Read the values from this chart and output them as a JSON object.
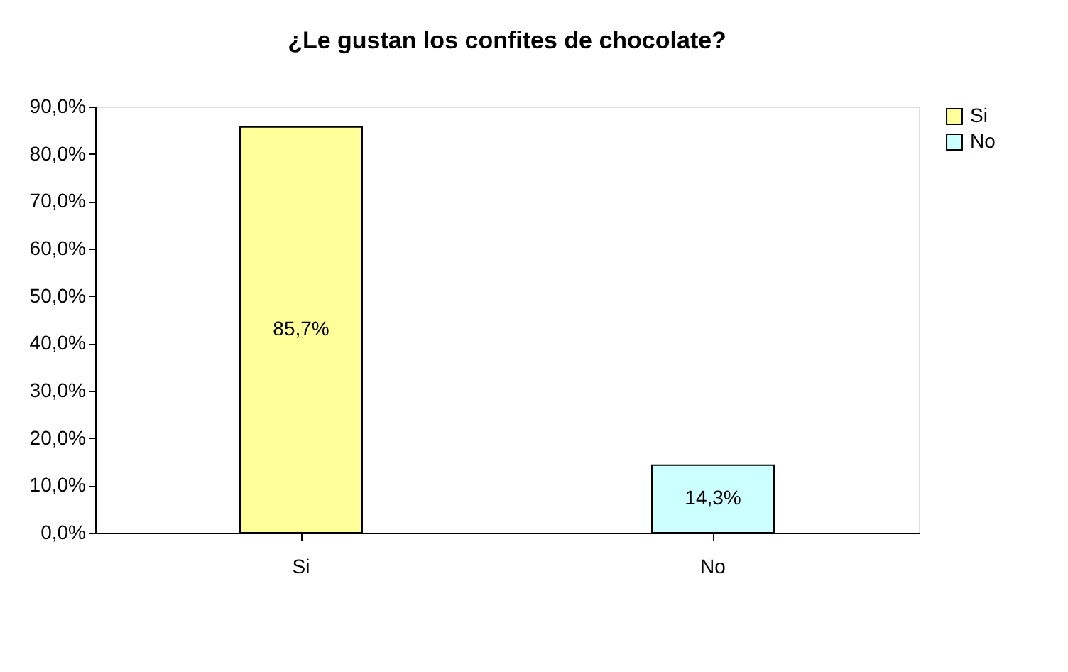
{
  "chart_data": {
    "type": "bar",
    "title": "¿Le gustan los confites de chocolate?",
    "categories": [
      "Si",
      "No"
    ],
    "series": [
      {
        "name": "Si",
        "color": "#ffff99",
        "values": [
          85.7,
          null
        ],
        "value_labels": [
          "85,7%",
          null
        ]
      },
      {
        "name": "No",
        "color": "#ccffff",
        "values": [
          null,
          14.3
        ],
        "value_labels": [
          null,
          "14,3%"
        ]
      }
    ],
    "ylim": [
      0,
      90
    ],
    "yticks": [
      {
        "value": 0,
        "label": "0,0%"
      },
      {
        "value": 10,
        "label": "10,0%"
      },
      {
        "value": 20,
        "label": "20,0%"
      },
      {
        "value": 30,
        "label": "30,0%"
      },
      {
        "value": 40,
        "label": "40,0%"
      },
      {
        "value": 50,
        "label": "50,0%"
      },
      {
        "value": 60,
        "label": "60,0%"
      },
      {
        "value": 70,
        "label": "70,0%"
      },
      {
        "value": 80,
        "label": "80,0%"
      },
      {
        "value": 90,
        "label": "90,0%"
      }
    ],
    "grid": false,
    "legend": "right"
  }
}
